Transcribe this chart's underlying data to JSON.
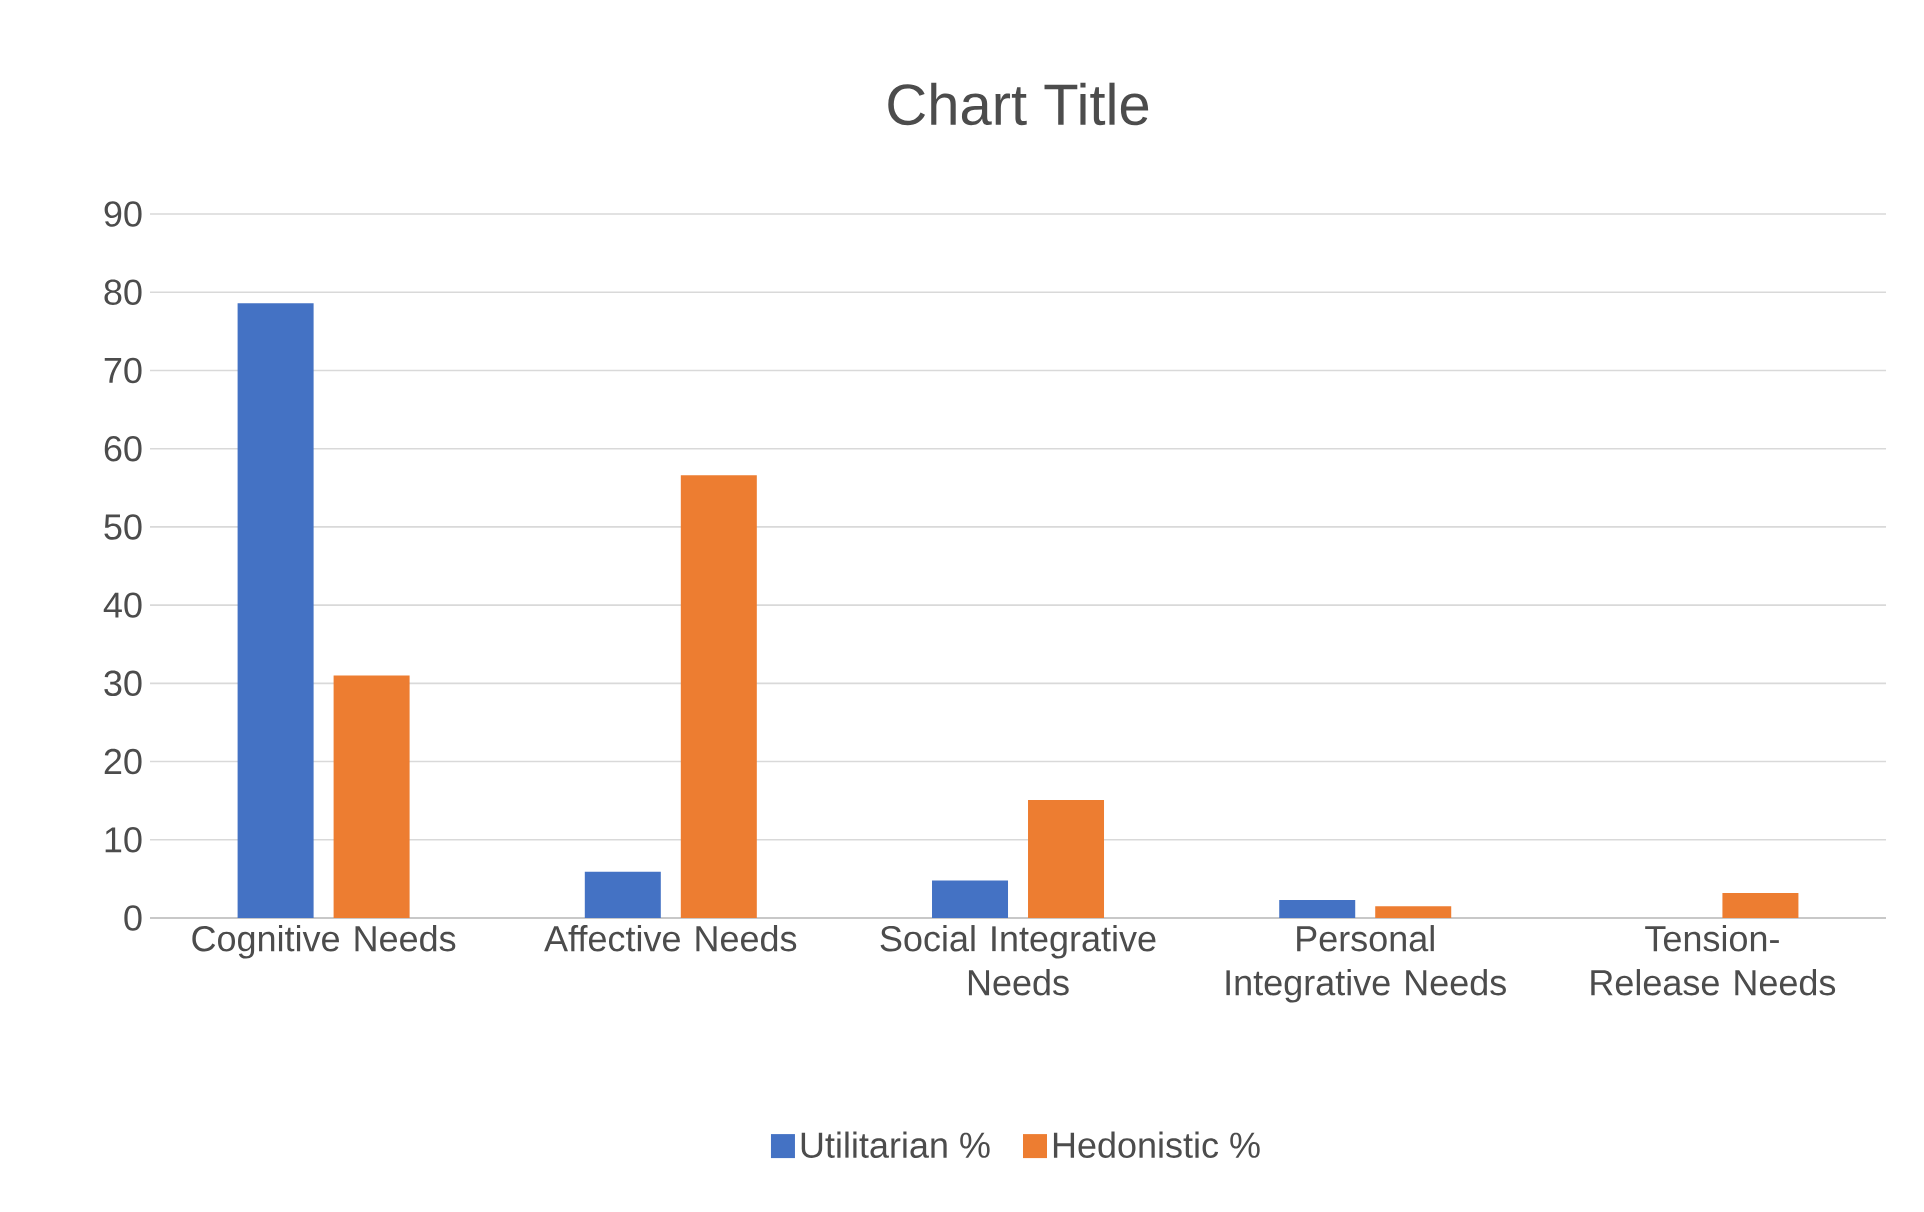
{
  "chart_data": {
    "type": "bar",
    "title": "Chart Title",
    "categories": [
      "Cognitive Needs",
      "Affective Needs",
      "Social Integrative Needs",
      "Personal Integrative Needs",
      "Tension-Release Needs"
    ],
    "series": [
      {
        "name": "Utilitarian %",
        "color": "#4472c4",
        "values": [
          78.6,
          5.9,
          4.8,
          2.3,
          null
        ]
      },
      {
        "name": "Hedonistic %",
        "color": "#ed7d31",
        "values": [
          31.0,
          56.6,
          15.1,
          1.5,
          3.2
        ]
      }
    ],
    "ylim": [
      0,
      90
    ],
    "yticks": [
      0,
      10,
      20,
      30,
      40,
      50,
      60,
      70,
      80,
      90
    ],
    "grid": "y",
    "legend": "bottom"
  }
}
